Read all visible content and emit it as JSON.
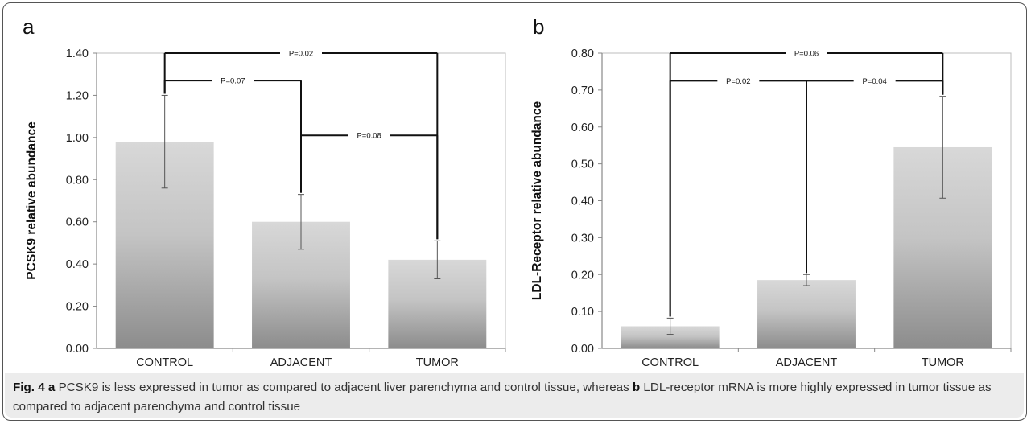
{
  "panel_a_letter": "a",
  "panel_b_letter": "b",
  "chart_data": [
    {
      "type": "bar",
      "panel": "a",
      "ylabel": "PCSK9 relative abundance",
      "xlabel": "",
      "categories": [
        "CONTROL",
        "ADJACENT",
        "TUMOR"
      ],
      "values": [
        0.98,
        0.6,
        0.42
      ],
      "errors": [
        0.22,
        0.13,
        0.09
      ],
      "ylim": [
        0,
        1.4
      ],
      "yticks": [
        "0.00",
        "0.20",
        "0.40",
        "0.60",
        "0.80",
        "1.00",
        "1.20",
        "1.40"
      ],
      "grid": false,
      "bar_color_top": "#d8d8d8",
      "bar_color_bottom": "#8c8c8c",
      "brackets": [
        {
          "from": 0,
          "to": 2,
          "y": 1.4,
          "label": "P=0.02"
        },
        {
          "from": 0,
          "to": 1,
          "y": 1.27,
          "label": "P=0.07"
        },
        {
          "from": 1,
          "to": 2,
          "y": 1.01,
          "label": "P=0.08"
        }
      ]
    },
    {
      "type": "bar",
      "panel": "b",
      "ylabel": "LDL-Receptor relative abundance",
      "xlabel": "",
      "categories": [
        "CONTROL",
        "ADJACENT",
        "TUMOR"
      ],
      "values": [
        0.06,
        0.185,
        0.545
      ],
      "errors": [
        0.022,
        0.015,
        0.138
      ],
      "ylim": [
        0,
        0.8
      ],
      "yticks": [
        "0.00",
        "0.10",
        "0.20",
        "0.30",
        "0.40",
        "0.50",
        "0.60",
        "0.70",
        "0.80"
      ],
      "grid": false,
      "bar_color_top": "#d8d8d8",
      "bar_color_bottom": "#8c8c8c",
      "brackets": [
        {
          "from": 0,
          "to": 2,
          "y": 0.8,
          "label": "P=0.06"
        },
        {
          "from": 0,
          "to": 1,
          "y": 0.725,
          "label": "P=0.02"
        },
        {
          "from": 1,
          "to": 2,
          "y": 0.725,
          "label": "P=0.04"
        }
      ]
    }
  ],
  "caption": {
    "fig_label": "Fig. 4",
    "part_a_letter": "a",
    "part_a_text": " PCSK9 is less expressed in tumor as compared to adjacent liver parenchyma and control tissue, whereas ",
    "part_b_letter": "b",
    "part_b_text": " LDL-receptor mRNA is more highly expressed in tumor tissue as compared to adjacent parenchyma and control tissue"
  }
}
